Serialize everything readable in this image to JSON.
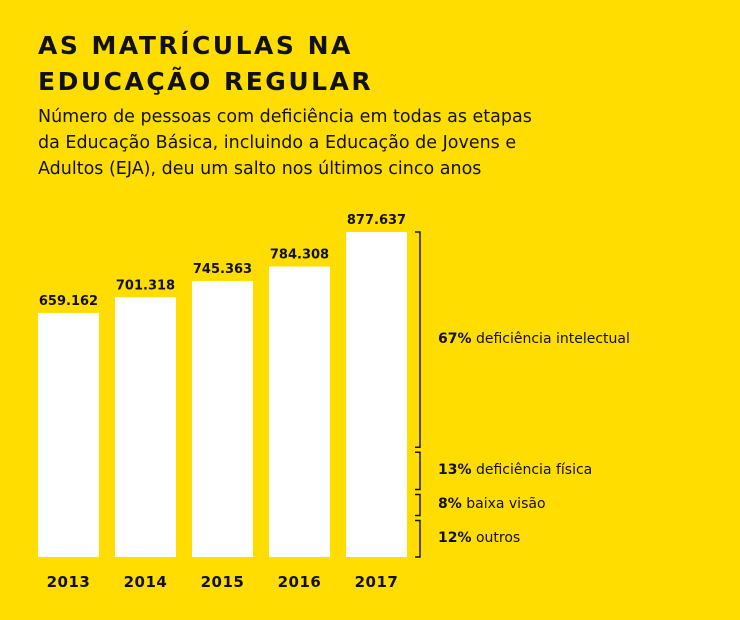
{
  "title_lines": [
    "AS MATRÍCULAS NA",
    "EDUCAÇÃO REGULAR"
  ],
  "subtitle_lines": [
    "Número de pessoas com deficiência em todas as etapas",
    "da Educação Básica, incluindo a Educação de Jovens e",
    "Adultos (EJA), deu um salto nos últimos cinco anos"
  ],
  "colors": {
    "background": "#FFDD00",
    "bar": "#FFFFFF",
    "text": "#111111"
  },
  "chart_data": {
    "type": "bar",
    "categories": [
      "2013",
      "2014",
      "2015",
      "2016",
      "2017"
    ],
    "values": [
      659162,
      701318,
      745363,
      784308,
      877637
    ],
    "value_labels": [
      "659.162",
      "701.318",
      "745.363",
      "784.308",
      "877.637"
    ],
    "ylim": [
      0,
      877637
    ],
    "breakdown": [
      {
        "percent": 67,
        "pct_text": "67%",
        "label": "deficiência intelectual"
      },
      {
        "percent": 13,
        "pct_text": "13%",
        "label": "deficiência física"
      },
      {
        "percent": 8,
        "pct_text": "8%",
        "label": "baixa visão"
      },
      {
        "percent": 12,
        "pct_text": "12%",
        "label": "outros"
      }
    ]
  }
}
